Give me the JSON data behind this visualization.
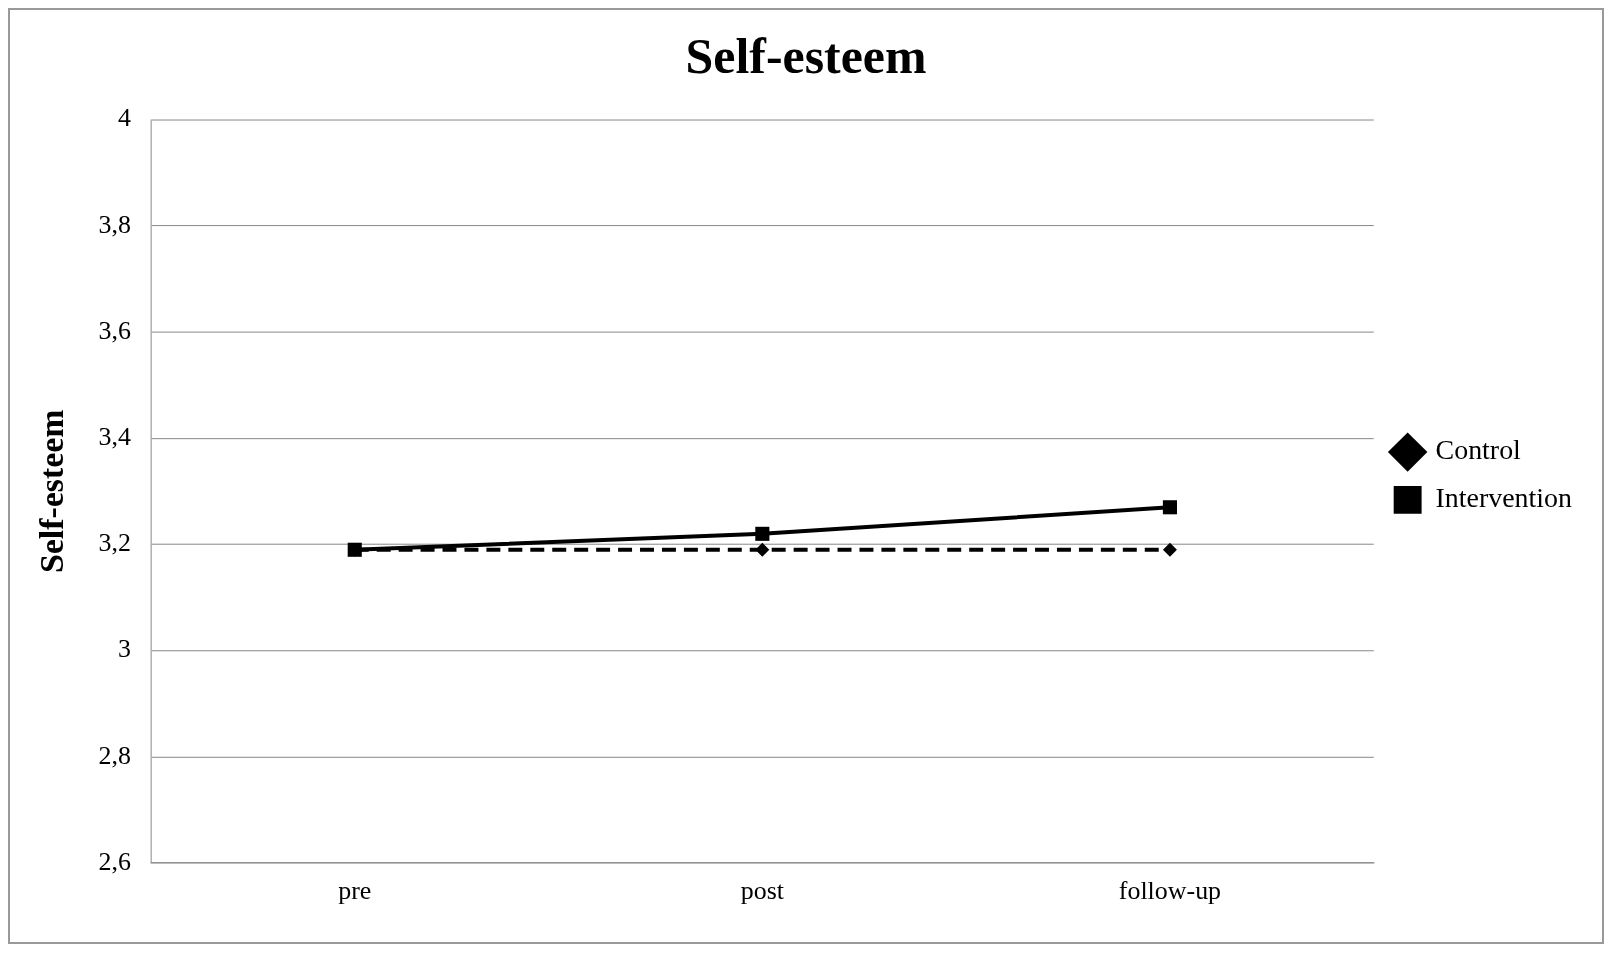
{
  "chart_data": {
    "type": "line",
    "title": "Self-esteem",
    "ylabel": "Self-esteem",
    "categories": [
      "pre",
      "post",
      "follow-up"
    ],
    "series": [
      {
        "name": "Control",
        "color": "#000000",
        "values": [
          3.19,
          3.19,
          3.19
        ],
        "marker": "diamond",
        "line_style": "dashed"
      },
      {
        "name": "Intervention",
        "color": "#000000",
        "values": [
          3.19,
          3.22,
          3.27
        ],
        "marker": "square",
        "line_style": "solid"
      }
    ],
    "ylim": [
      2.6,
      4
    ],
    "yticks": [
      {
        "value": 2.6,
        "label": "2,6"
      },
      {
        "value": 2.8,
        "label": "2,8"
      },
      {
        "value": 3,
        "label": "3"
      },
      {
        "value": 3.2,
        "label": "3,2"
      },
      {
        "value": 3.4,
        "label": "3,4"
      },
      {
        "value": 3.6,
        "label": "3,6"
      },
      {
        "value": 3.8,
        "label": "3,8"
      },
      {
        "value": 4,
        "label": "4"
      }
    ],
    "grid": "y",
    "legend": "right"
  }
}
